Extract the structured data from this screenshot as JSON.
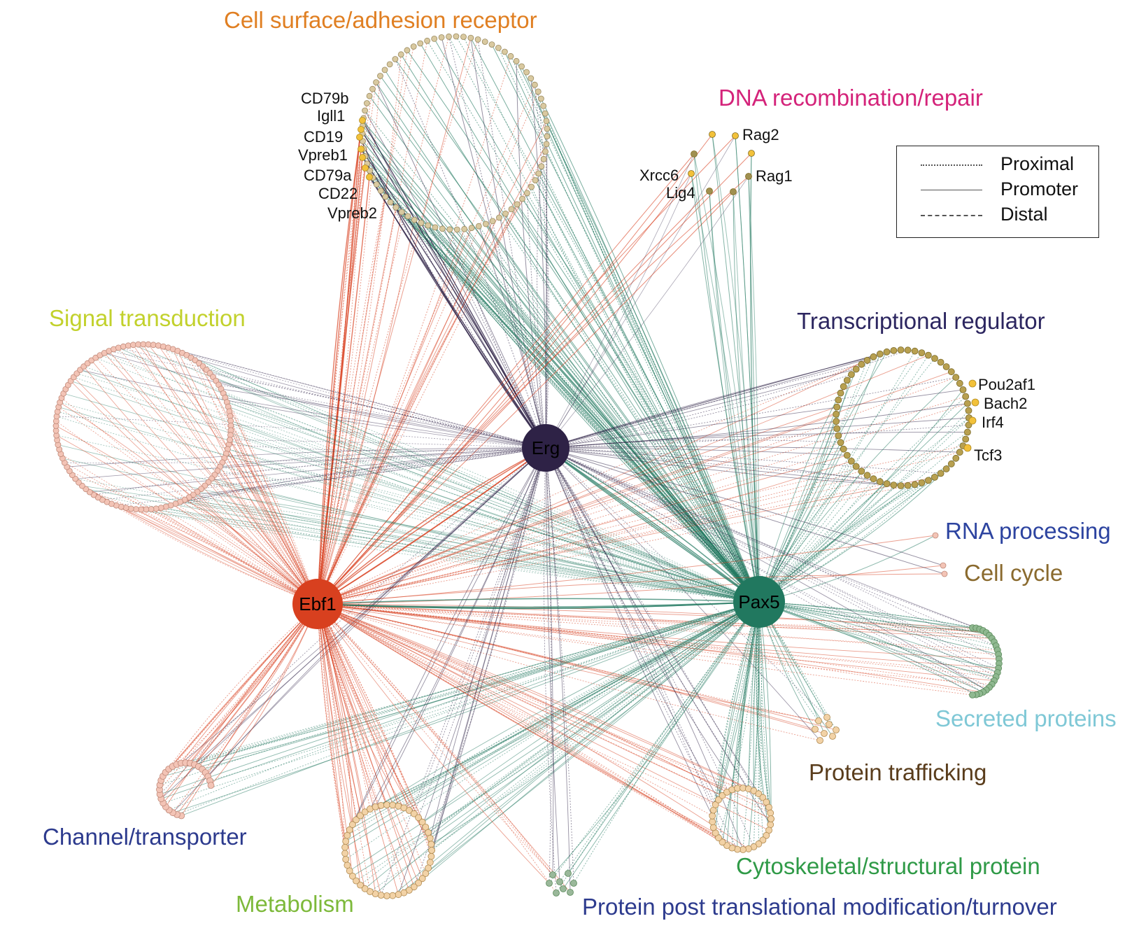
{
  "hubs": [
    {
      "id": "erg",
      "label": "Erg",
      "color": "#2e2246"
    },
    {
      "id": "ebf1",
      "label": "Ebf1",
      "color": "#d8401f"
    },
    {
      "id": "pax5",
      "label": "Pax5",
      "color": "#21785f"
    }
  ],
  "categories": {
    "cell_surface": {
      "label": "Cell surface/adhesion receptor",
      "color": "#e07f22"
    },
    "dna_recombination": {
      "label": "DNA recombination/repair",
      "color": "#d4237a"
    },
    "signal_transduction": {
      "label": "Signal transduction",
      "color": "#c2d12c"
    },
    "transcriptional_regulator": {
      "label": "Transcriptional regulator",
      "color": "#2c2660"
    },
    "rna_processing": {
      "label": "RNA processing",
      "color": "#2d44a0"
    },
    "cell_cycle": {
      "label": "Cell cycle",
      "color": "#8a6a2e"
    },
    "secreted_proteins": {
      "label": "Secreted proteins",
      "color": "#7fc8d6"
    },
    "protein_trafficking": {
      "label": "Protein trafficking",
      "color": "#5a3d1c"
    },
    "channel_transporter": {
      "label": "Channel/transporter",
      "color": "#2d3b8e"
    },
    "metabolism": {
      "label": "Metabolism",
      "color": "#7db93a"
    },
    "cytoskeletal": {
      "label": "Cytoskeletal/structural protein",
      "color": "#2f9a47"
    },
    "protein_ptm": {
      "label": "Protein post translational modification/turnover",
      "color": "#2d3b8e"
    }
  },
  "genes": {
    "cell_surface": [
      "CD79b",
      "Igll1",
      "CD19",
      "Vpreb1",
      "CD79a",
      "CD22",
      "Vpreb2"
    ],
    "dna_recombination": [
      "Rag2",
      "Xrcc6",
      "Rag1",
      "Lig4"
    ],
    "transcriptional_regulator": [
      "Pou2af1",
      "Bach2",
      "Irf4",
      "Tcf3"
    ]
  },
  "legend": {
    "items": [
      {
        "label": "Proximal",
        "style": "dotted"
      },
      {
        "label": "Promoter",
        "style": "solid"
      },
      {
        "label": "Distal",
        "style": "dashed"
      }
    ]
  },
  "edge_colors": {
    "erg": "#2e2246",
    "ebf1": "#d8401f",
    "pax5": "#21785f"
  }
}
